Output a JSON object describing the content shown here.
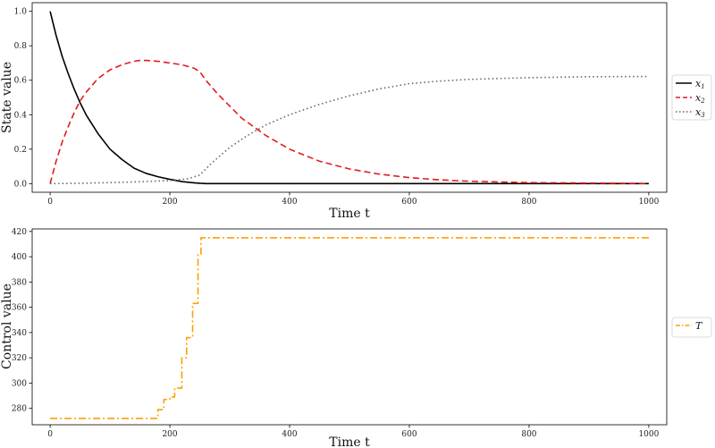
{
  "chart_data": [
    {
      "type": "line",
      "xlabel": "Time t",
      "ylabel": "State value",
      "xlim": [
        -30,
        1030
      ],
      "ylim": [
        -0.05,
        1.05
      ],
      "xticks": [
        0,
        200,
        400,
        600,
        800,
        1000
      ],
      "yticks": [
        0.0,
        0.2,
        0.4,
        0.6,
        0.8,
        1.0
      ],
      "ytick_format": 1,
      "grid": false,
      "legend_position": "outside-right",
      "series": [
        {
          "name": "x",
          "sub": "1",
          "color": "#000000",
          "style": "solid",
          "x": [
            0,
            10,
            20,
            30,
            40,
            50,
            60,
            80,
            100,
            120,
            140,
            160,
            180,
            200,
            220,
            240,
            250,
            260,
            300,
            400,
            600,
            800,
            1000
          ],
          "y": [
            1.0,
            0.86,
            0.74,
            0.64,
            0.55,
            0.47,
            0.4,
            0.29,
            0.2,
            0.14,
            0.09,
            0.06,
            0.04,
            0.025,
            0.012,
            0.005,
            0.002,
            0.0,
            0.0,
            0.0,
            0.0,
            0.0,
            0.0
          ]
        },
        {
          "name": "x",
          "sub": "2",
          "color": "#e31a1c",
          "style": "dashed",
          "x": [
            0,
            10,
            20,
            30,
            40,
            50,
            60,
            80,
            100,
            120,
            140,
            150,
            160,
            180,
            200,
            220,
            240,
            250,
            260,
            280,
            300,
            320,
            340,
            360,
            380,
            400,
            450,
            500,
            550,
            600,
            650,
            700,
            800,
            900,
            1000
          ],
          "y": [
            0.0,
            0.13,
            0.24,
            0.33,
            0.41,
            0.48,
            0.53,
            0.61,
            0.66,
            0.69,
            0.71,
            0.715,
            0.715,
            0.71,
            0.7,
            0.69,
            0.67,
            0.65,
            0.6,
            0.52,
            0.45,
            0.38,
            0.33,
            0.28,
            0.24,
            0.2,
            0.13,
            0.085,
            0.055,
            0.035,
            0.022,
            0.014,
            0.006,
            0.003,
            0.001
          ]
        },
        {
          "name": "x",
          "sub": "3",
          "color": "#666666",
          "style": "dotted",
          "x": [
            0,
            50,
            100,
            150,
            200,
            230,
            250,
            270,
            300,
            330,
            360,
            400,
            450,
            500,
            550,
            600,
            650,
            700,
            800,
            900,
            1000
          ],
          "y": [
            0.0,
            0.002,
            0.006,
            0.011,
            0.018,
            0.028,
            0.05,
            0.12,
            0.21,
            0.28,
            0.34,
            0.4,
            0.46,
            0.51,
            0.55,
            0.58,
            0.595,
            0.605,
            0.615,
            0.62,
            0.622
          ]
        }
      ]
    },
    {
      "type": "line",
      "xlabel": "Time t",
      "ylabel": "Control value",
      "xlim": [
        -30,
        1030
      ],
      "ylim": [
        267,
        422
      ],
      "xticks": [
        0,
        200,
        400,
        600,
        800,
        1000
      ],
      "yticks": [
        280,
        300,
        320,
        340,
        360,
        380,
        400,
        420
      ],
      "ytick_format": 0,
      "grid": false,
      "legend_position": "outside-right",
      "series": [
        {
          "name": "T",
          "sub": "",
          "color": "#ff9f00",
          "style": "dashdot",
          "step": true,
          "x": [
            0,
            175,
            180,
            190,
            200,
            208,
            220,
            228,
            238,
            247,
            252,
            1000
          ],
          "y": [
            272,
            272,
            279,
            287,
            289,
            296,
            320,
            336,
            363,
            402,
            415,
            415
          ]
        }
      ]
    }
  ]
}
